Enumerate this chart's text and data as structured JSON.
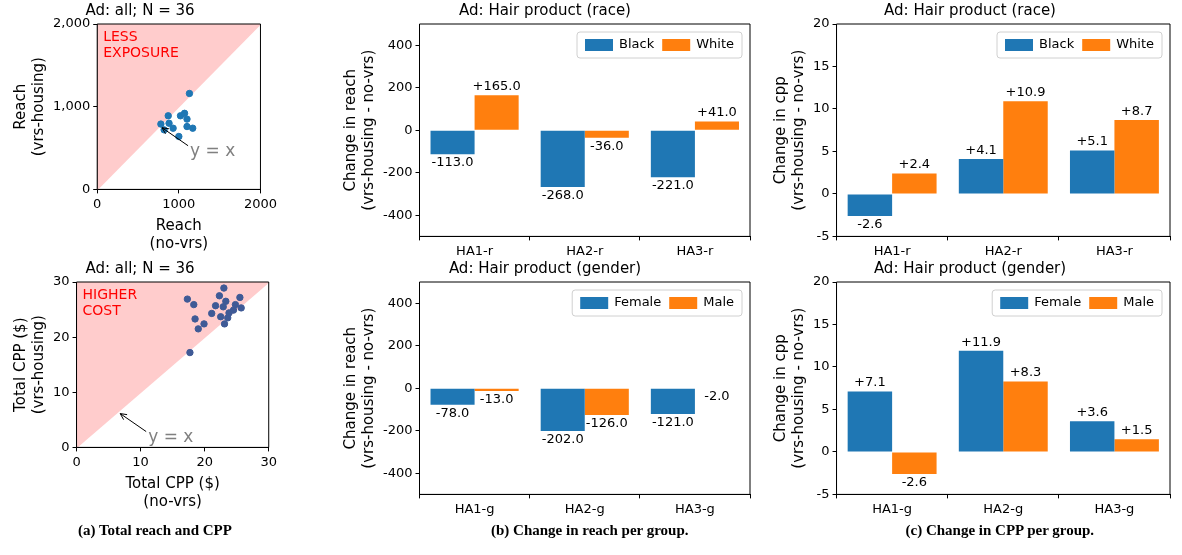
{
  "chart_data": [
    {
      "type": "scatter",
      "title": "Ad: all; N = 36",
      "xlabel": "Reach\n(no-vrs)",
      "ylabel": "Reach\n(vrs-housing)",
      "xlim": [
        0,
        2000
      ],
      "ylim": [
        0,
        2000
      ],
      "xticks": [
        0,
        1000,
        2000
      ],
      "yticks": [
        0,
        {
          "value": 1000,
          "label": "1,000"
        },
        {
          "value": 2000,
          "label": "2,000"
        }
      ],
      "marker": "circle",
      "legend": false,
      "series": [
        {
          "type": "scatter",
          "color": "#1f77b4",
          "x": [
            1130,
            870,
            780,
            1000,
            1020,
            1070,
            1100,
            1100,
            1170,
            820,
            930,
            880
          ],
          "values": [
            1160,
            890,
            790,
            640,
            890,
            920,
            850,
            760,
            740,
            720,
            740,
            800
          ]
        },
        {
          "type": "area",
          "name": "LESS EXPOSURE",
          "color": "#ffcccc",
          "marker": "none",
          "x": [
            0,
            2000
          ],
          "values": [
            0,
            2000
          ]
        }
      ],
      "annotations": [
        {
          "text": "y = x",
          "x": 770,
          "y": 770
        }
      ]
    },
    {
      "type": "bar",
      "title": "Ad: Hair product (race)",
      "ylabel": "Change in reach\n(vrs-housing - no-vrs)",
      "categories": [
        "HA1-r",
        "HA2-r",
        "HA3-r"
      ],
      "ylim": [
        -500,
        500
      ],
      "yticks": [
        -400,
        -200,
        0,
        200,
        400
      ],
      "legend": "top right",
      "series": [
        {
          "name": "Black",
          "color": "#1f77b4",
          "values": [
            -113,
            -268,
            -221
          ],
          "value_labels": [
            "-113.0",
            "-268.0",
            "-221.0"
          ]
        },
        {
          "name": "White",
          "color": "#ff7f0e",
          "values": [
            165,
            -36,
            41
          ],
          "value_labels": [
            "+165.0",
            "-36.0",
            "+41.0"
          ]
        }
      ]
    },
    {
      "type": "bar",
      "title": "Ad: Hair product (race)",
      "ylabel": "Change in cpp\n(vrs-housing - no-vrs)",
      "categories": [
        "HA1-r",
        "HA2-r",
        "HA3-r"
      ],
      "ylim": [
        -5,
        20
      ],
      "yticks": [
        -5,
        0,
        5,
        10,
        15,
        20
      ],
      "legend": "top right",
      "series": [
        {
          "name": "Black",
          "color": "#1f77b4",
          "values": [
            -2.6,
            4.1,
            5.1
          ],
          "value_labels": [
            "-2.6",
            "+4.1",
            "+5.1"
          ]
        },
        {
          "name": "White",
          "color": "#ff7f0e",
          "values": [
            2.4,
            10.9,
            8.7
          ],
          "value_labels": [
            "+2.4",
            "+10.9",
            "+8.7"
          ]
        }
      ]
    },
    {
      "type": "scatter",
      "title": "Ad: all; N = 36",
      "xlabel": "Total CPP ($)\n(no-vrs)",
      "ylabel": "Total CPP ($)\n(vrs-housing)",
      "xlim": [
        0,
        30
      ],
      "ylim": [
        0,
        30
      ],
      "xticks": [
        0,
        10,
        20,
        30
      ],
      "yticks": [
        0,
        10,
        20,
        30
      ],
      "marker": "circle",
      "legend": false,
      "series": [
        {
          "type": "scatter",
          "color": "#3f5a96",
          "x": [
            17.7,
            17.3,
            18.3,
            18.5,
            19.0,
            19.9,
            21.1,
            21.7,
            22.3,
            23.0,
            22.5,
            23.1,
            23.6,
            22.9,
            25.5,
            25.7,
            24.8,
            23.8,
            23.3,
            24.5
          ],
          "values": [
            17.2,
            26.9,
            25.9,
            23.3,
            21.5,
            22.4,
            24.3,
            25.7,
            27.5,
            28.9,
            23.7,
            22.4,
            23.5,
            25.5,
            27.2,
            25.3,
            25.9,
            24.4,
            26.5,
            24.9
          ]
        },
        {
          "type": "area",
          "name": "HIGHER COST",
          "color": "#ffcccc",
          "marker": "none",
          "x": [
            0,
            30
          ],
          "values": [
            0,
            30
          ]
        }
      ],
      "annotations": [
        {
          "text": "y = x",
          "x": 6.5,
          "y": 6.5
        },
        "(a) Total reach and CPP"
      ]
    },
    {
      "type": "bar",
      "title": "Ad: Hair product (gender)",
      "ylabel": "Change in reach\n(vrs-housing - no-vrs)",
      "categories": [
        "HA1-g",
        "HA2-g",
        "HA3-g"
      ],
      "ylim": [
        -500,
        500
      ],
      "yticks": [
        -400,
        -200,
        0,
        200,
        400
      ],
      "legend": "top right",
      "series": [
        {
          "name": "Female",
          "color": "#1f77b4",
          "values": [
            -78,
            -202,
            -121
          ],
          "value_labels": [
            "-78.0",
            "-202.0",
            "-121.0"
          ]
        },
        {
          "name": "Male",
          "color": "#ff7f0e",
          "values": [
            -13,
            -126,
            -2
          ],
          "value_labels": [
            "-13.0",
            "-126.0",
            "-2.0"
          ]
        }
      ],
      "annotations": [
        "(b) Change in reach per group."
      ]
    },
    {
      "type": "bar",
      "title": "Ad: Hair product (gender)",
      "ylabel": "Change in cpp\n(vrs-housing - no-vrs)",
      "categories": [
        "HA1-g",
        "HA2-g",
        "HA3-g"
      ],
      "ylim": [
        -5,
        20
      ],
      "yticks": [
        -5,
        0,
        5,
        10,
        15,
        20
      ],
      "legend": "top right",
      "series": [
        {
          "name": "Female",
          "color": "#1f77b4",
          "values": [
            7.1,
            11.9,
            3.6
          ],
          "value_labels": [
            "+7.1",
            "+11.9",
            "+3.6"
          ]
        },
        {
          "name": "Male",
          "color": "#ff7f0e",
          "values": [
            -2.6,
            8.3,
            1.5
          ],
          "value_labels": [
            "-2.6",
            "+8.3",
            "+1.5"
          ]
        }
      ],
      "annotations": [
        "(c) Change in CPP per group."
      ]
    }
  ]
}
